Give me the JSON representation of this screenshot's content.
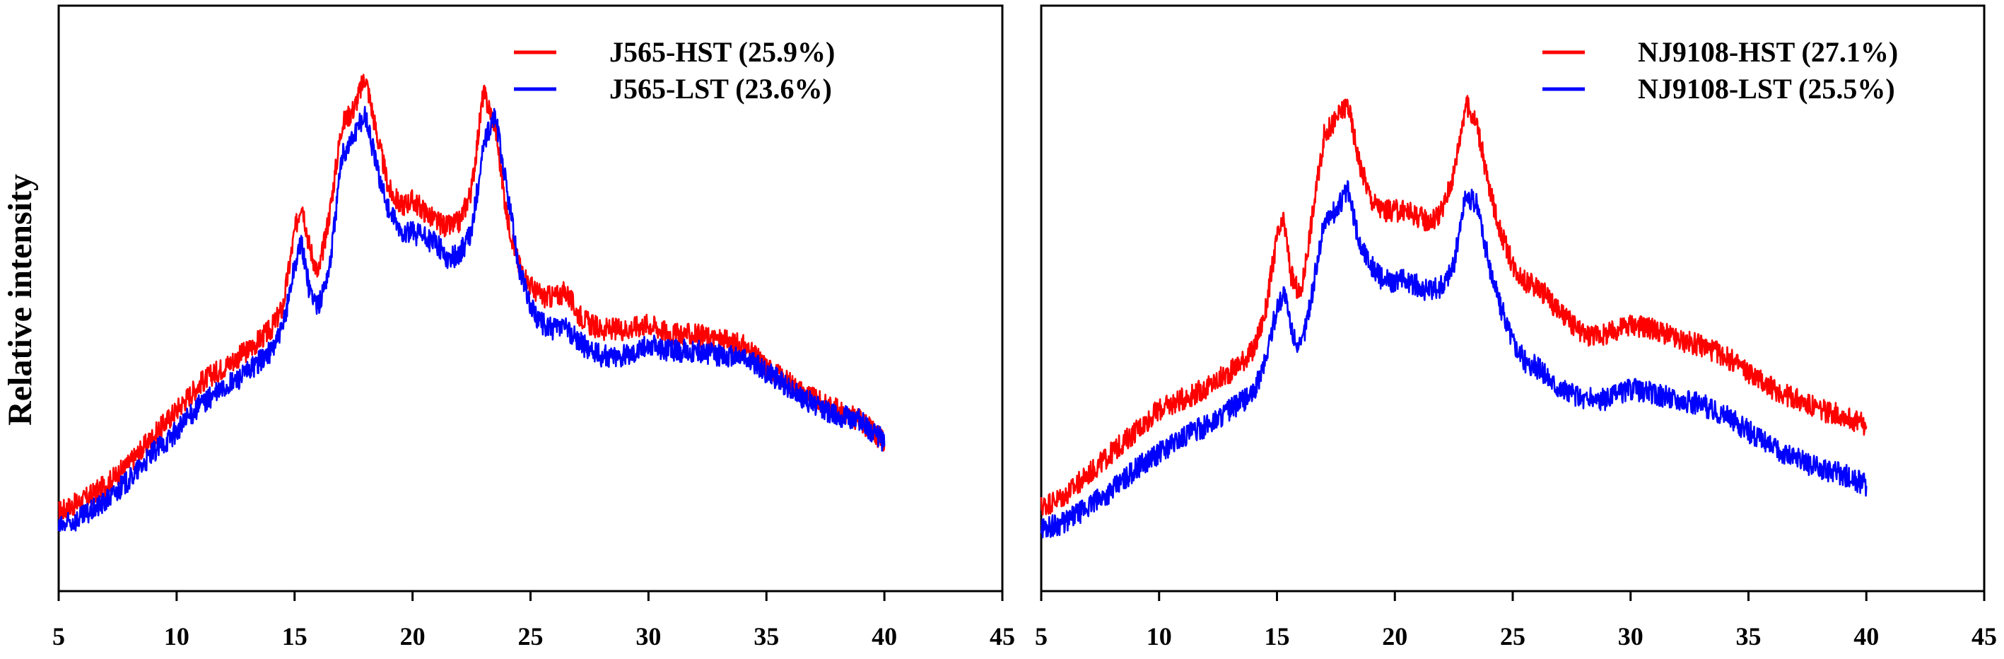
{
  "chart_data": [
    {
      "type": "line",
      "title": "",
      "xlabel": "",
      "ylabel": "Relative intensity",
      "xlim": [
        5,
        45
      ],
      "xticks": [
        5,
        10,
        15,
        20,
        25,
        30,
        35,
        40,
        45
      ],
      "ylim": [
        0,
        100
      ],
      "y_ticks_shown": false,
      "grid": false,
      "legend_position": "top-right",
      "series": [
        {
          "name": "J565-HST (25.9%)",
          "color": "#ff0000",
          "x": [
            5,
            6,
            7,
            8,
            9,
            10,
            11,
            12,
            13,
            14,
            14.5,
            15,
            15.3,
            15.6,
            16,
            16.5,
            17,
            17.5,
            18,
            18.5,
            19,
            19.5,
            20,
            20.5,
            21,
            21.5,
            22,
            22.5,
            23,
            23.5,
            24,
            24.5,
            25,
            25.5,
            26,
            26.5,
            27,
            27.5,
            28,
            29,
            30,
            31,
            32,
            33,
            34,
            35,
            36,
            37,
            38,
            39,
            40
          ],
          "y": [
            10,
            12,
            15,
            19,
            24,
            29,
            34,
            37,
            40,
            44,
            48,
            62,
            68,
            60,
            54,
            66,
            82,
            85,
            91,
            80,
            70,
            67,
            68,
            66,
            64,
            63,
            64,
            70,
            88,
            82,
            65,
            56,
            52,
            50,
            50,
            51,
            47,
            45,
            44,
            44,
            45,
            43,
            43,
            42,
            41,
            37,
            34,
            31,
            29,
            27,
            23
          ]
        },
        {
          "name": "J565-LST (23.6%)",
          "color": "#0000ff",
          "x": [
            5,
            6,
            7,
            8,
            9,
            10,
            11,
            12,
            13,
            14,
            14.5,
            15,
            15.3,
            15.6,
            16,
            16.5,
            17,
            17.5,
            18,
            18.5,
            19,
            19.5,
            20,
            20.5,
            21,
            21.5,
            22,
            22.5,
            23,
            23.5,
            24,
            24.5,
            25,
            25.5,
            26,
            26.5,
            27,
            27.5,
            28,
            29,
            30,
            31,
            32,
            33,
            34,
            35,
            36,
            37,
            38,
            39,
            40
          ],
          "y": [
            7,
            9,
            12,
            16,
            21,
            25,
            30,
            33,
            36,
            40,
            44,
            56,
            60,
            52,
            48,
            56,
            76,
            80,
            84,
            74,
            66,
            62,
            62,
            61,
            60,
            57,
            58,
            62,
            78,
            84,
            70,
            56,
            48,
            45,
            44,
            44,
            42,
            40,
            39,
            39,
            41,
            40,
            40,
            39,
            39,
            36,
            33,
            30,
            28,
            27,
            23
          ]
        }
      ]
    },
    {
      "type": "line",
      "title": "",
      "xlabel": "",
      "ylabel": "",
      "xlim": [
        5,
        45
      ],
      "xticks": [
        5,
        10,
        15,
        20,
        25,
        30,
        35,
        40,
        45
      ],
      "ylim": [
        0,
        100
      ],
      "y_ticks_shown": false,
      "grid": false,
      "legend_position": "top-right",
      "series": [
        {
          "name": "NJ9108-HST (27.1%)",
          "color": "#ff0000",
          "x": [
            5,
            6,
            7,
            8,
            9,
            10,
            11,
            12,
            13,
            14,
            14.5,
            15,
            15.3,
            15.6,
            16,
            16.5,
            17,
            17.5,
            18,
            18.5,
            19,
            19.5,
            20,
            20.5,
            21,
            21.5,
            22,
            22.5,
            23,
            23.5,
            24,
            24.5,
            25,
            25.5,
            26,
            26.5,
            27,
            27.5,
            28,
            29,
            30,
            31,
            32,
            33,
            34,
            35,
            36,
            37,
            38,
            39,
            40
          ],
          "y": [
            11,
            13,
            17,
            21,
            25,
            29,
            31,
            33,
            36,
            40,
            47,
            61,
            64,
            54,
            50,
            65,
            80,
            83,
            86,
            75,
            68,
            66,
            66,
            66,
            65,
            64,
            66,
            73,
            86,
            82,
            70,
            62,
            56,
            53,
            52,
            50,
            47,
            45,
            43,
            43,
            45,
            44,
            42,
            41,
            39,
            36,
            33,
            31,
            29,
            28,
            26
          ]
        },
        {
          "name": "NJ9108-LST (25.5%)",
          "color": "#0000ff",
          "x": [
            5,
            6,
            7,
            8,
            9,
            10,
            11,
            12,
            13,
            14,
            14.5,
            15,
            15.3,
            15.6,
            16,
            16.5,
            17,
            17.5,
            18,
            18.5,
            19,
            19.5,
            20,
            20.5,
            21,
            21.5,
            22,
            22.5,
            23,
            23.5,
            24,
            24.5,
            25,
            25.5,
            26,
            26.5,
            27,
            27.5,
            28,
            29,
            30,
            31,
            32,
            33,
            34,
            35,
            36,
            37,
            38,
            39,
            40
          ],
          "y": [
            7,
            8,
            11,
            14,
            18,
            21,
            24,
            26,
            29,
            32,
            38,
            48,
            51,
            44,
            40,
            51,
            64,
            66,
            70,
            60,
            56,
            53,
            53,
            53,
            52,
            51,
            52,
            56,
            69,
            67,
            56,
            48,
            42,
            38,
            37,
            35,
            33,
            32,
            31,
            31,
            33,
            32,
            31,
            30,
            28,
            25,
            22,
            20,
            18,
            17,
            15
          ]
        }
      ]
    }
  ]
}
